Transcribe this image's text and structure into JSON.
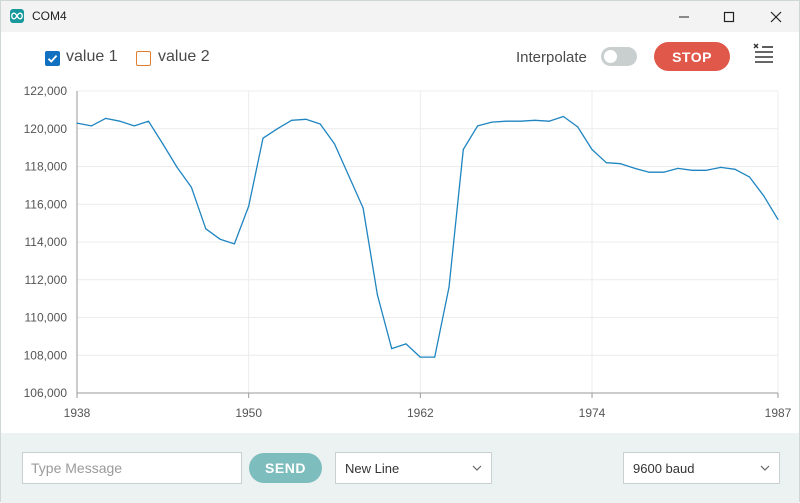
{
  "window": {
    "title": "COM4",
    "icon": "arduino-infinity-icon",
    "controls": [
      "minimize-icon",
      "maximize-icon",
      "close-icon"
    ]
  },
  "toolbar": {
    "series": [
      {
        "label": "value 1",
        "checked": true,
        "color": "#1170c0"
      },
      {
        "label": "value 2",
        "checked": false,
        "color": "#e07e31"
      }
    ],
    "interpolate_label": "Interpolate",
    "interpolate_on": false,
    "stop_label": "STOP",
    "stop_color": "#e0584a",
    "clear_icon": "clear-list-icon"
  },
  "chart_data": {
    "type": "line",
    "xlim": [
      1938,
      1987
    ],
    "ylim": [
      106000,
      122000
    ],
    "x_ticks": [
      "1938",
      "1950",
      "1962",
      "1974",
      "1987"
    ],
    "y_ticks": [
      "122,000",
      "120,000",
      "118,000",
      "116,000",
      "114,000",
      "112,000",
      "110,000",
      "108,000",
      "106,000"
    ],
    "grid": true,
    "series": [
      {
        "color": "#1f85c1",
        "x": [
          1938,
          1939,
          1940,
          1941,
          1942,
          1943,
          1944,
          1945,
          1946,
          1947,
          1948,
          1949,
          1950,
          1951,
          1952,
          1953,
          1954,
          1955,
          1956,
          1957,
          1958,
          1959,
          1960,
          1961,
          1962,
          1963,
          1964,
          1965,
          1966,
          1967,
          1968,
          1969,
          1970,
          1971,
          1972,
          1973,
          1974,
          1975,
          1976,
          1977,
          1978,
          1979,
          1980,
          1981,
          1982,
          1983,
          1984,
          1985,
          1986,
          1987
        ],
        "y": [
          120300,
          120150,
          120550,
          120400,
          120150,
          120400,
          119200,
          117950,
          116900,
          114700,
          114150,
          113900,
          115900,
          119500,
          120000,
          120450,
          120500,
          120250,
          119200,
          117500,
          115800,
          111200,
          108350,
          108600,
          107900,
          107900,
          111600,
          118900,
          120150,
          120350,
          120400,
          120400,
          120450,
          120400,
          120650,
          120100,
          118900,
          118200,
          118150,
          117900,
          117700,
          117700,
          117900,
          117800,
          117800,
          117950,
          117850,
          117450,
          116450,
          115200
        ]
      }
    ]
  },
  "bottom": {
    "message_placeholder": "Type Message",
    "send_label": "SEND",
    "line_ending": "New Line",
    "baud": "9600 baud"
  }
}
